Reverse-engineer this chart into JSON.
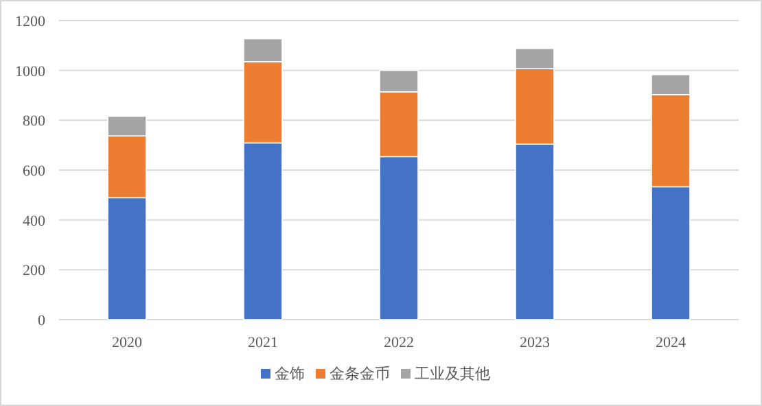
{
  "chart_data": {
    "type": "bar",
    "stacked": true,
    "categories": [
      "2020",
      "2021",
      "2022",
      "2023",
      "2024"
    ],
    "series": [
      {
        "name": "金饰",
        "color": "#4472c4",
        "values": [
          489,
          709,
          654,
          704,
          533
        ]
      },
      {
        "name": "金条金币",
        "color": "#ed7d31",
        "values": [
          248,
          326,
          260,
          303,
          370
        ]
      },
      {
        "name": "工业及其他",
        "color": "#a5a5a5",
        "values": [
          79,
          92,
          86,
          81,
          80
        ]
      }
    ],
    "ylim": [
      0,
      1200
    ],
    "yticks": [
      0,
      200,
      400,
      600,
      800,
      1000,
      1200
    ],
    "grid": "y",
    "legend": "bottom"
  }
}
